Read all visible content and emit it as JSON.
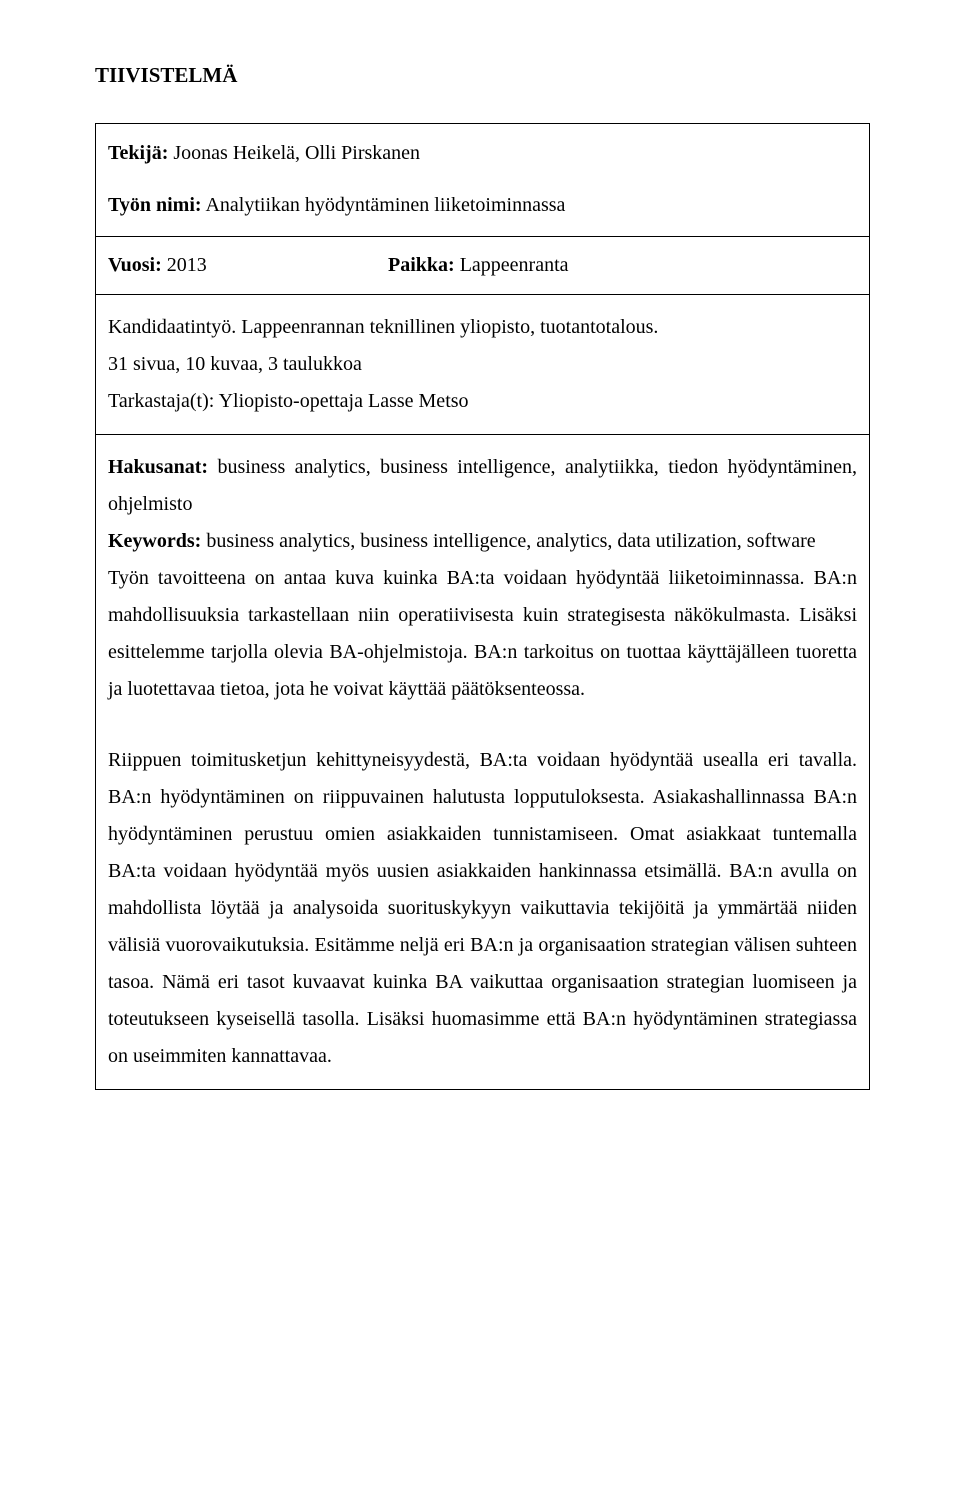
{
  "title": "TIIVISTELMÄ",
  "author": {
    "label": "Tekijä:",
    "value": "Joonas Heikelä, Olli Pirskanen"
  },
  "work": {
    "label": "Työn nimi:",
    "value": "Analytiikan hyödyntäminen liiketoiminnassa"
  },
  "year": {
    "label": "Vuosi:",
    "value": "2013"
  },
  "place": {
    "label": "Paikka:",
    "value": "Lappeenranta"
  },
  "meta": {
    "line1": "Kandidaatintyö. Lappeenrannan teknillinen yliopisto, tuotantotalous.",
    "line2": "31 sivua, 10 kuvaa, 3 taulukkoa",
    "line3": "Tarkastaja(t): Yliopisto-opettaja Lasse Metso"
  },
  "hakusanat": {
    "label": "Hakusanat:",
    "value": "business analytics, business intelligence, analytiikka, tiedon hyödyntäminen, ohjelmisto"
  },
  "keywords": {
    "label": "Keywords:",
    "value": "business analytics, business intelligence, analytics, data utilization, software"
  },
  "abstract": {
    "p1": "Työn tavoitteena on antaa kuva kuinka BA:ta voidaan hyödyntää liiketoiminnassa. BA:n mahdollisuuksia tarkastellaan niin operatiivisesta kuin strategisesta näkökulmasta. Lisäksi esittelemme tarjolla olevia BA-ohjelmistoja. BA:n tarkoitus on tuottaa käyttäjälleen tuoretta ja luotettavaa tietoa, jota he voivat käyttää päätöksenteossa.",
    "p2": "Riippuen toimitusketjun kehittyneisyydestä, BA:ta voidaan hyödyntää usealla eri tavalla. BA:n hyödyntäminen on riippuvainen halutusta lopputuloksesta. Asiakashallinnassa BA:n hyödyntäminen perustuu omien asiakkaiden tunnistamiseen. Omat asiakkaat tuntemalla BA:ta voidaan hyödyntää myös uusien asiakkaiden hankinnassa etsimällä. BA:n avulla on mahdollista löytää ja analysoida suorituskykyyn vaikuttavia tekijöitä ja ymmärtää niiden välisiä vuorovaikutuksia. Esitämme neljä eri BA:n ja organisaation strategian välisen suhteen tasoa. Nämä eri tasot kuvaavat kuinka BA vaikuttaa organisaation strategian luomiseen ja toteutukseen kyseisellä tasolla. Lisäksi huomasimme että BA:n hyödyntäminen strategiassa on useimmiten kannattavaa."
  }
}
